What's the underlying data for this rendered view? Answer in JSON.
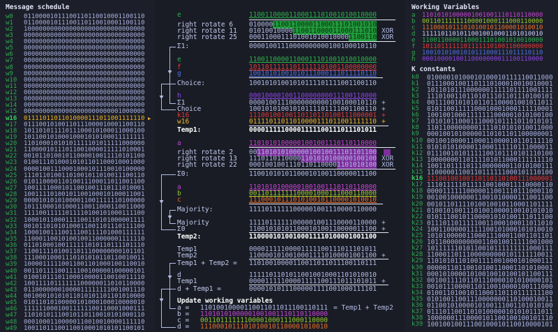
{
  "colors": {
    "a": "#c844d4",
    "b": "#9acb2c",
    "c": "#e8702a",
    "d": "#c8d0f8",
    "e": "#2bb34c",
    "f": "#e03a3a",
    "g": "#5070e4",
    "h": "#8e44e6",
    "label": "#2fa84f",
    "bits": "#a9b1de",
    "w_current": "#f0b428",
    "k_current": "#e03a3a",
    "highlight_e": "#1f9a3a",
    "highlight_a": "#7d2f9c"
  },
  "schedule": {
    "title": "Message schedule",
    "current": "w16",
    "pointer_icon": "triangle-right",
    "rows": [
      {
        "label": "w0",
        "value": "01100001011100110110010001100110"
      },
      {
        "label": "w1",
        "value": "01100001011100110110010001100110"
      },
      {
        "label": "w2",
        "value": "10000000000000000000000000000000"
      },
      {
        "label": "w3",
        "value": "00000000000000000000000000000000"
      },
      {
        "label": "w4",
        "value": "00000000000000000000000000000000"
      },
      {
        "label": "w5",
        "value": "00000000000000000000000000000000"
      },
      {
        "label": "w6",
        "value": "00000000000000000000000000000000"
      },
      {
        "label": "w7",
        "value": "00000000000000000000000000000000"
      },
      {
        "label": "w8",
        "value": "00000000000000000000000000000000"
      },
      {
        "label": "w9",
        "value": "00000000000000000000000000000000"
      },
      {
        "label": "w10",
        "value": "00000000000000000000000000000000"
      },
      {
        "label": "w11",
        "value": "00000000000000000000000000000000"
      },
      {
        "label": "w12",
        "value": "00000000000000000000000000000000"
      },
      {
        "label": "w13",
        "value": "00000000000000000000000000000000"
      },
      {
        "label": "w14",
        "value": "00000000000000000000000000000000"
      },
      {
        "label": "w15",
        "value": "00000000000000000000000001000000"
      },
      {
        "label": "w16",
        "value": "01111011011010000111011001111110"
      },
      {
        "label": "w17",
        "value": "01110010100110111000010001100110"
      },
      {
        "label": "w18",
        "value": "10110101111011100010100011000100"
      },
      {
        "label": "w19",
        "value": "10110010100010001010100011111111"
      },
      {
        "label": "w20",
        "value": "11010001010101111101011111000000"
      },
      {
        "label": "w21",
        "value": "11000010111011001000011111010001"
      },
      {
        "label": "w22",
        "value": "00101101001011000010011110101100"
      },
      {
        "label": "w23",
        "value": "01001110100010101101100010001000"
      },
      {
        "label": "w24",
        "value": "00001001110001000101110010100000"
      },
      {
        "label": "w25",
        "value": "11101101001101001011010011100110"
      },
      {
        "label": "w26",
        "value": "01011000011010011100011011001100"
      },
      {
        "label": "w27",
        "value": "10011110001011001001110111010001"
      },
      {
        "label": "w28",
        "value": "10011110100101100100010100011001"
      },
      {
        "label": "w29",
        "value": "00001010101000011001111110100000"
      },
      {
        "label": "w30",
        "value": "10111000101000110011000110011000"
      },
      {
        "label": "w31",
        "value": "11110011111011110100101000111100"
      },
      {
        "label": "w32",
        "value": "10001011000111100110101000001111"
      },
      {
        "label": "w33",
        "value": "00101101010100011001101110111100"
      },
      {
        "label": "w34",
        "value": "10001001110011100111101000111111"
      },
      {
        "label": "w35",
        "value": "11000110010100100110000001111110"
      },
      {
        "label": "w36",
        "value": "01101000100111111010110111101110"
      },
      {
        "label": "w37",
        "value": "11001111010011011100000000101101"
      },
      {
        "label": "w38",
        "value": "11100010001110101010110110010011"
      },
      {
        "label": "w39",
        "value": "10000111110011001101000100110010"
      },
      {
        "label": "w40",
        "value": "00110111100111100100000100000101"
      },
      {
        "label": "w41",
        "value": "01001011101100010000110010011110"
      },
      {
        "label": "w42",
        "value": "10011110111111100000011010110000"
      },
      {
        "label": "w43",
        "value": "01100000001000011111111001001110"
      },
      {
        "label": "w44",
        "value": "00100010101011010101101101010000"
      },
      {
        "label": "w45",
        "value": "01011010100000101000100010000010"
      },
      {
        "label": "w46",
        "value": "11111100010011111100110001000111"
      },
      {
        "label": "w47",
        "value": "11010101110010110110010101000110"
      },
      {
        "label": "w48",
        "value": "00010001100000110010010000111110"
      },
      {
        "label": "w49",
        "value": "10011011100110010001010101100101"
      }
    ]
  },
  "working": {
    "title": "Working Variables",
    "rows": [
      {
        "label": "a",
        "value": "11010101000001001001110110110000",
        "color": "#c844d4"
      },
      {
        "label": "b",
        "value": "00110111111100001000111000110000",
        "color": "#9acb2c"
      },
      {
        "label": "c",
        "value": "11100010111010100101100001010010",
        "color": "#e8702a"
      },
      {
        "label": "d",
        "value": "11111011010110010010001101010010",
        "color": "#c8d0f8"
      },
      {
        "label": "e",
        "value": "11001100001100011101001010010000",
        "color": "#2bb34c"
      },
      {
        "label": "f",
        "value": "10110111111011111101001100000000",
        "color": "#e03a3a"
      },
      {
        "label": "g",
        "value": "10010101001010111000111011110110",
        "color": "#5070e4"
      },
      {
        "label": "h",
        "value": "00010000100110000000011100110000",
        "color": "#8e44e6"
      }
    ]
  },
  "k": {
    "title": "K constants",
    "current": "k16",
    "rows": [
      {
        "label": "k0",
        "value": "01000010100010100010111110011000"
      },
      {
        "label": "k1",
        "value": "01110001001101110100010010010001"
      },
      {
        "label": "k2",
        "value": "10110101110000001111101111001111"
      },
      {
        "label": "k3",
        "value": "11101001101101011101101110100101"
      },
      {
        "label": "k4",
        "value": "00111001010101101100001001011011"
      },
      {
        "label": "k5",
        "value": "01011001111100010001000111110001"
      },
      {
        "label": "k6",
        "value": "10010010001111111000001010100100"
      },
      {
        "label": "k7",
        "value": "10101011000111000101111011010101"
      },
      {
        "label": "k8",
        "value": "11011000000001111010101010011000"
      },
      {
        "label": "k9",
        "value": "00010010100000110101101100000001"
      },
      {
        "label": "k10",
        "value": "00100100001100011000010110111110"
      },
      {
        "label": "k11",
        "value": "01010101000011000111110111000011"
      },
      {
        "label": "k12",
        "value": "01110010101111100101110101110100"
      },
      {
        "label": "k13",
        "value": "10000000110111101011000111111110"
      },
      {
        "label": "k14",
        "value": "10011011110111000000011010100111"
      },
      {
        "label": "k15",
        "value": "11000001100110111111000101110100"
      },
      {
        "label": "k16",
        "value": "11100100100110110110100111000001"
      },
      {
        "label": "k17",
        "value": "11101111101111100100011110000110"
      },
      {
        "label": "k18",
        "value": "00001111110000011001110111000110"
      },
      {
        "label": "k19",
        "value": "00100100000011001010000111001100"
      },
      {
        "label": "k20",
        "value": "00101101111010010010110001101111"
      },
      {
        "label": "k21",
        "value": "01001010011101001000010010101010"
      },
      {
        "label": "k22",
        "value": "01011100101100001010100111011100"
      },
      {
        "label": "k23",
        "value": "01110110111110011000100011011010"
      },
      {
        "label": "k24",
        "value": "10011000001111100101000101010010"
      },
      {
        "label": "k25",
        "value": "10101000001100011100011001101101"
      },
      {
        "label": "k26",
        "value": "10110000000000110010011111001000"
      },
      {
        "label": "k27",
        "value": "10111111010110010111111111000111"
      },
      {
        "label": "k28",
        "value": "11000110111000000000101111110011"
      },
      {
        "label": "k29",
        "value": "11010101101001111001000101000111"
      },
      {
        "label": "k30",
        "value": "00000110110010100110001101010001"
      },
      {
        "label": "k31",
        "value": "00010100001010010010100101100111"
      },
      {
        "label": "k32",
        "value": "00100111101101110000101010000101"
      },
      {
        "label": "k33",
        "value": "00101110000110110010000100111000"
      },
      {
        "label": "k34",
        "value": "01001101001011000110110111111100"
      },
      {
        "label": "k35",
        "value": "01010011001110000000110100010011"
      },
      {
        "label": "k36",
        "value": "01100101000010100111001101010100"
      },
      {
        "label": "k37",
        "value": "01110110011010100000101010111011"
      },
      {
        "label": "k38",
        "value": "10000001110000101100100100101110"
      },
      {
        "label": "k39",
        "value": "10010010011100100010110010000101"
      }
    ]
  },
  "sigma1": {
    "e": {
      "label": "e",
      "value": "11001100001100011101001010010000"
    },
    "rotations": [
      {
        "label": "right rotate 6",
        "amount": 6,
        "value": "01000011001100001100011101001010",
        "op": ""
      },
      {
        "label": "right rotate 11",
        "amount": 11,
        "value": "01010010000110011000011000111010",
        "op": "XOR"
      },
      {
        "label": "right rotate 25",
        "amount": 25,
        "value": "00011000111010010100100001100110",
        "op": "XOR"
      }
    ],
    "result": {
      "label": "Σ1:",
      "value": "00001001110000000000100100010110"
    }
  },
  "choice": {
    "rows": [
      {
        "label": "e",
        "value": "11001100001100011101001010010000"
      },
      {
        "label": "f",
        "value": "10110111111011111101001100000000"
      },
      {
        "label": "g",
        "value": "10010101001010111000111011110110"
      }
    ],
    "result": {
      "label": "Choice:",
      "value": "10010101001010111101111001100110"
    }
  },
  "temp1": {
    "rows": [
      {
        "label": "h",
        "value": "00010000100110000000011100110000",
        "op": ""
      },
      {
        "label": "Σ1",
        "value": "00001001110000000000100100010110",
        "op": "+"
      },
      {
        "label": "Choice",
        "value": "10010101001010111101111001100110",
        "op": "+"
      },
      {
        "label": "k16",
        "value": "11100100100110110110100111000001",
        "op": "+"
      },
      {
        "label": "w16",
        "value": "01111011011010000111011001111110",
        "op": "+"
      }
    ],
    "result": {
      "label": "Temp1:",
      "value": "00001111100001111100111011101011"
    }
  },
  "sigma0": {
    "a": {
      "label": "a",
      "value": "11010101000001001001110110110000"
    },
    "rotations": [
      {
        "label": "right rotate 2",
        "amount": 2,
        "value": "00110101010000010010011101101100",
        "op": ""
      },
      {
        "label": "right rotate 13",
        "amount": 13,
        "value": "11101101100001101010100000100100",
        "op": "XOR"
      },
      {
        "label": "right rotate 22",
        "amount": 22,
        "value": "00010010011101101100001101010100",
        "op": "XOR"
      }
    ],
    "result": {
      "label": "Σ0:",
      "value": "11001010101100010100110000011100"
    }
  },
  "majority": {
    "rows": [
      {
        "label": "a",
        "value": "11010101000001001001110110110000"
      },
      {
        "label": "b",
        "value": "00110111111100001000111000110000"
      },
      {
        "label": "c",
        "value": "11100010111010100101100001010010"
      }
    ],
    "result": {
      "label": "Majority:",
      "value": "11110111111000001001110000110000"
    }
  },
  "temp2": {
    "rows": [
      {
        "label": "Majority",
        "value": "11110111111000001001110000110000",
        "op": "+"
      },
      {
        "label": "Σ0",
        "value": "11001010101100010100110000011100",
        "op": "+"
      }
    ],
    "result": {
      "label": "Temp2:",
      "value": "11000010100100011110100001001100"
    }
  },
  "new_a": {
    "rows": [
      {
        "label": "Temp1",
        "value": "00001111100001111100111011101011",
        "op": ""
      },
      {
        "label": "Temp2",
        "value": "11000010100100011110100001001100",
        "op": "+"
      }
    ],
    "result": {
      "label": "Temp1 + Temp2 =",
      "value": "11010010000110011011011100110111"
    }
  },
  "new_e": {
    "rows": [
      {
        "label": "d",
        "value": "11111011010110010010001101010010",
        "op": ""
      },
      {
        "label": "Temp1",
        "value": "00001111100001111100111011101011",
        "op": "+"
      }
    ],
    "result": {
      "label": "d + Temp1 =",
      "value": "00001010111000001111001000111101"
    }
  },
  "update": {
    "title": "Update working variables",
    "rows": [
      {
        "label": "a =",
        "value": "11010010000110011011011100110111",
        "note": "= Temp1 + Temp2"
      },
      {
        "label": "b =",
        "value": "11010101000001001001110110110000"
      },
      {
        "label": "c =",
        "value": "00110111111100001000111000110000"
      },
      {
        "label": "d =",
        "value": "11100010111010100101100001010010"
      }
    ]
  }
}
